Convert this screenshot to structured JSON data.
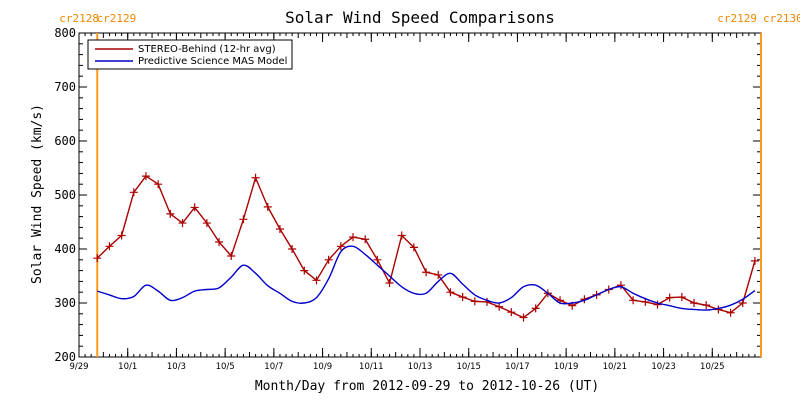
{
  "chart_data": {
    "type": "line",
    "title": "Solar Wind Speed Comparisons",
    "xlabel": "Month/Day from 2012-09-29 to 2012-10-26 (UT)",
    "ylabel": "Solar Wind Speed (km/s)",
    "ylim": [
      200,
      800
    ],
    "xlim": [
      "2012-09-29",
      "2012-10-26"
    ],
    "yticks": [
      200,
      300,
      400,
      500,
      600,
      700,
      800
    ],
    "xtick_labels": [
      "9/29",
      "10/1",
      "10/3",
      "10/5",
      "10/7",
      "10/9",
      "10/11",
      "10/13",
      "10/15",
      "10/17",
      "10/19",
      "10/21",
      "10/23",
      "10/25"
    ],
    "xtick_dates": [
      "2012-09-29",
      "2012-10-01",
      "2012-10-03",
      "2012-10-05",
      "2012-10-07",
      "2012-10-09",
      "2012-10-11",
      "2012-10-13",
      "2012-10-15",
      "2012-10-17",
      "2012-10-19",
      "2012-10-21",
      "2012-10-23",
      "2012-10-25"
    ],
    "legend_position": "top-left",
    "carrington_markers": [
      {
        "date": "2012-09-29 18:00",
        "label_left": "cr2128",
        "label_right": "cr2129"
      },
      {
        "date": "2012-10-27 00:00",
        "label_left": "cr2129",
        "label_right": "cr2130"
      }
    ],
    "series": [
      {
        "name": "STEREO-Behind (12-hr avg)",
        "color": "#aa0000",
        "marker": "plus",
        "x": [
          "2012-09-29 18:00",
          "2012-09-30 06:00",
          "2012-09-30 18:00",
          "2012-10-01 06:00",
          "2012-10-01 18:00",
          "2012-10-02 06:00",
          "2012-10-02 18:00",
          "2012-10-03 06:00",
          "2012-10-03 18:00",
          "2012-10-04 06:00",
          "2012-10-04 18:00",
          "2012-10-05 06:00",
          "2012-10-05 18:00",
          "2012-10-06 06:00",
          "2012-10-06 18:00",
          "2012-10-07 06:00",
          "2012-10-07 18:00",
          "2012-10-08 06:00",
          "2012-10-08 18:00",
          "2012-10-09 06:00",
          "2012-10-09 18:00",
          "2012-10-10 06:00",
          "2012-10-10 18:00",
          "2012-10-11 06:00",
          "2012-10-11 18:00",
          "2012-10-12 06:00",
          "2012-10-12 18:00",
          "2012-10-13 06:00",
          "2012-10-13 18:00",
          "2012-10-14 06:00",
          "2012-10-14 18:00",
          "2012-10-15 06:00",
          "2012-10-15 18:00",
          "2012-10-16 06:00",
          "2012-10-16 18:00",
          "2012-10-17 06:00",
          "2012-10-17 18:00",
          "2012-10-18 06:00",
          "2012-10-18 18:00",
          "2012-10-19 06:00",
          "2012-10-19 18:00",
          "2012-10-20 06:00",
          "2012-10-20 18:00",
          "2012-10-21 06:00",
          "2012-10-21 18:00",
          "2012-10-22 06:00",
          "2012-10-22 18:00",
          "2012-10-23 06:00",
          "2012-10-23 18:00",
          "2012-10-24 06:00",
          "2012-10-24 18:00",
          "2012-10-25 06:00",
          "2012-10-25 18:00",
          "2012-10-26 06:00",
          "2012-10-26 18:00"
        ],
        "values": [
          383,
          405,
          425,
          505,
          535,
          520,
          465,
          448,
          477,
          448,
          413,
          387,
          455,
          532,
          478,
          437,
          400,
          360,
          342,
          380,
          405,
          422,
          418,
          380,
          337,
          425,
          403,
          357,
          352,
          320,
          311,
          303,
          302,
          293,
          283,
          273,
          290,
          318,
          305,
          295,
          307,
          315,
          325,
          333,
          305,
          302,
          297,
          310,
          311,
          300,
          296,
          288,
          282,
          300,
          378
        ]
      },
      {
        "name": "Predictive Science MAS Model",
        "color": "#0000cc",
        "marker": "none",
        "x": [
          "2012-09-29 18:00",
          "2012-09-30 06:00",
          "2012-09-30 18:00",
          "2012-10-01 06:00",
          "2012-10-01 18:00",
          "2012-10-02 06:00",
          "2012-10-02 18:00",
          "2012-10-03 06:00",
          "2012-10-03 18:00",
          "2012-10-04 06:00",
          "2012-10-04 18:00",
          "2012-10-05 06:00",
          "2012-10-05 18:00",
          "2012-10-06 06:00",
          "2012-10-06 18:00",
          "2012-10-07 06:00",
          "2012-10-07 18:00",
          "2012-10-08 06:00",
          "2012-10-08 18:00",
          "2012-10-09 06:00",
          "2012-10-09 18:00",
          "2012-10-10 06:00",
          "2012-10-10 18:00",
          "2012-10-11 06:00",
          "2012-10-11 18:00",
          "2012-10-12 06:00",
          "2012-10-12 18:00",
          "2012-10-13 06:00",
          "2012-10-13 18:00",
          "2012-10-14 06:00",
          "2012-10-14 18:00",
          "2012-10-15 06:00",
          "2012-10-15 18:00",
          "2012-10-16 06:00",
          "2012-10-16 18:00",
          "2012-10-17 06:00",
          "2012-10-17 18:00",
          "2012-10-18 06:00",
          "2012-10-18 18:00",
          "2012-10-19 06:00",
          "2012-10-19 18:00",
          "2012-10-20 06:00",
          "2012-10-20 18:00",
          "2012-10-21 06:00",
          "2012-10-21 18:00",
          "2012-10-22 06:00",
          "2012-10-22 18:00",
          "2012-10-23 06:00",
          "2012-10-23 18:00",
          "2012-10-24 06:00",
          "2012-10-24 18:00",
          "2012-10-25 06:00",
          "2012-10-25 18:00",
          "2012-10-26 06:00",
          "2012-10-26 18:00"
        ],
        "values": [
          322,
          315,
          308,
          312,
          333,
          322,
          305,
          310,
          322,
          325,
          328,
          348,
          370,
          355,
          332,
          318,
          303,
          300,
          310,
          345,
          395,
          405,
          390,
          370,
          350,
          330,
          318,
          318,
          340,
          355,
          335,
          315,
          305,
          300,
          310,
          330,
          333,
          318,
          300,
          300,
          305,
          315,
          325,
          330,
          318,
          308,
          300,
          295,
          290,
          288,
          287,
          290,
          296,
          307,
          323
        ]
      }
    ]
  }
}
